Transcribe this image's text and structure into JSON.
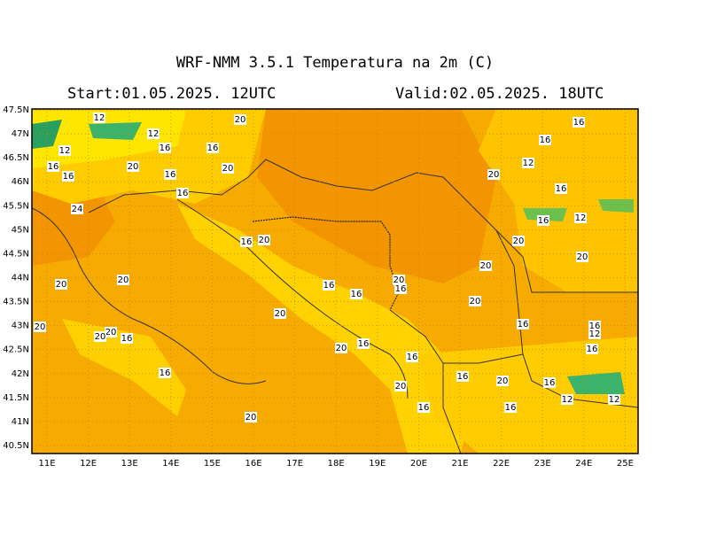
{
  "map": {
    "title": "WRF-NMM 3.5.1   Temperatura na 2m (C)",
    "start": "Start:01.05.2025.  12UTC",
    "valid": "Valid:02.05.2025.  18UTC",
    "lat_labels": [
      "47.5N",
      "47N",
      "46.5N",
      "46N",
      "45.5N",
      "45N",
      "44.5N",
      "44N",
      "43.5N",
      "43N",
      "42.5N",
      "42N",
      "41.5N",
      "41N",
      "40.5N"
    ],
    "lon_labels": [
      "11E",
      "12E",
      "13E",
      "14E",
      "15E",
      "16E",
      "17E",
      "18E",
      "19E",
      "20E",
      "21E",
      "22E",
      "23E",
      "24E",
      "25E"
    ],
    "contour_labels": [
      "12",
      "20",
      "16",
      "12",
      "16",
      "12",
      "16",
      "16",
      "12",
      "16",
      "20",
      "20",
      "16",
      "16",
      "20",
      "16",
      "16",
      "24",
      "16",
      "12",
      "16",
      "20",
      "20",
      "20",
      "20",
      "20",
      "20",
      "16",
      "20",
      "16",
      "16",
      "20",
      "20",
      "20",
      "16",
      "16",
      "12",
      "20",
      "20",
      "16",
      "16",
      "20",
      "16",
      "16",
      "16",
      "16",
      "20",
      "16",
      "20",
      "12",
      "12",
      "16",
      "16",
      "20"
    ]
  }
}
